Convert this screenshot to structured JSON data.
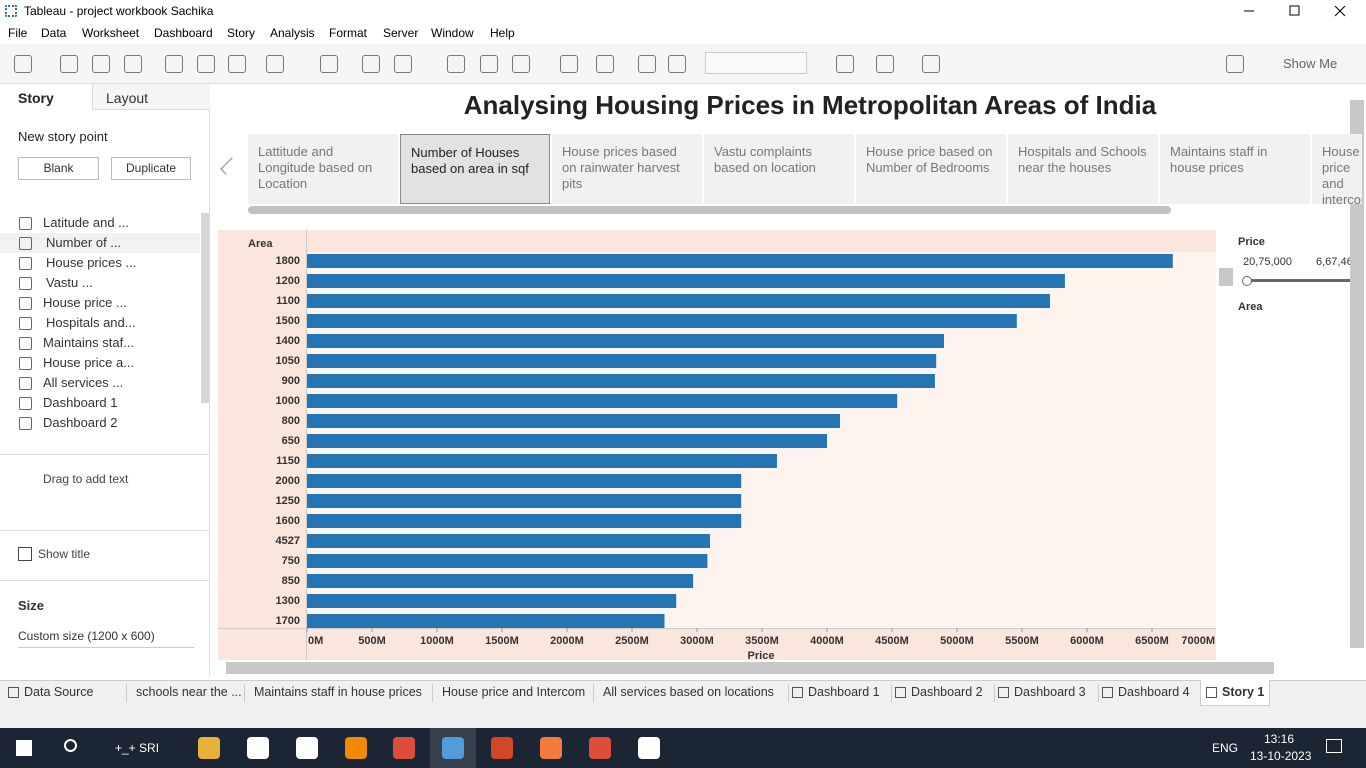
{
  "window": {
    "title": "Tableau - project workbook Sachika"
  },
  "menu": [
    "File",
    "Data",
    "Worksheet",
    "Dashboard",
    "Story",
    "Analysis",
    "Format",
    "Server",
    "Window",
    "Help"
  ],
  "toolbar": {
    "show_me": "Show Me"
  },
  "side_panel": {
    "tabs": [
      "Story",
      "Layout"
    ],
    "new_story_point": "New story point",
    "buttons": [
      "Blank",
      "Duplicate"
    ],
    "sheets": [
      "Latitude and ...",
      "Number of ...",
      "House prices ...",
      "Vastu ...",
      "House price ...",
      "Hospitals and...",
      "Maintains staf...",
      "House price a...",
      "All services ...",
      "Dashboard 1",
      "Dashboard 2"
    ],
    "drag_text": "Drag to add text",
    "show_title": "Show title",
    "size_heading": "Size",
    "size_value": "Custom size (1200 x 600)"
  },
  "story": {
    "title": "Analysing Housing Prices in Metropolitan Areas of India",
    "points": [
      "Lattitude and Longitude based on Location",
      "Number of Houses based on area in sqf",
      "House prices based on rainwater harvest pits",
      "Vastu complaints based on location",
      "House price based on Number of Bedrooms",
      "Hospitals and Schools near the houses",
      "Maintains staff in house prices",
      "House price and intercom"
    ]
  },
  "chart_data": {
    "type": "bar",
    "orientation": "horizontal",
    "y_label": "Area",
    "x_label": "Price",
    "color": "#2574b4",
    "categories": [
      "1800",
      "1200",
      "1100",
      "1500",
      "1400",
      "1050",
      "900",
      "1000",
      "800",
      "650",
      "1150",
      "2000",
      "1250",
      "1600",
      "4527",
      "750",
      "850",
      "1300",
      "1700"
    ],
    "values": [
      6660,
      5830,
      5715,
      5460,
      4900,
      4840,
      4830,
      4540,
      4100,
      4000,
      3615,
      3340,
      3340,
      3340,
      3100,
      3080,
      2970,
      2840,
      2750
    ],
    "xlim": [
      0,
      7000
    ],
    "xticks": [
      {
        "value": 0,
        "label": "0M"
      },
      {
        "value": 500,
        "label": "500M"
      },
      {
        "value": 1000,
        "label": "1000M"
      },
      {
        "value": 1500,
        "label": "1500M"
      },
      {
        "value": 2000,
        "label": "2000M"
      },
      {
        "value": 2500,
        "label": "2500M"
      },
      {
        "value": 3000,
        "label": "3000M"
      },
      {
        "value": 3500,
        "label": "3500M"
      },
      {
        "value": 4000,
        "label": "4000M"
      },
      {
        "value": 4500,
        "label": "4500M"
      },
      {
        "value": 5000,
        "label": "5000M"
      },
      {
        "value": 5500,
        "label": "5500M"
      },
      {
        "value": 6000,
        "label": "6000M"
      },
      {
        "value": 6500,
        "label": "6500M"
      },
      {
        "value": 7000,
        "label": "7000M"
      }
    ]
  },
  "filters": {
    "price_title": "Price",
    "price_min": "20,75,000",
    "price_max": "6,67,46",
    "area_title": "Area"
  },
  "sheet_tabs": [
    "Data Source",
    "schools near the ...",
    "Maintains staff in house prices",
    "House price and Intercom",
    "All services based on locations",
    "Dashboard 1",
    "Dashboard 2",
    "Dashboard 3",
    "Dashboard 4",
    "Story 1"
  ],
  "taskbar": {
    "search_label": "+_+ SRI",
    "language": "ENG",
    "time": "13:16",
    "date": "13-10-2023"
  }
}
